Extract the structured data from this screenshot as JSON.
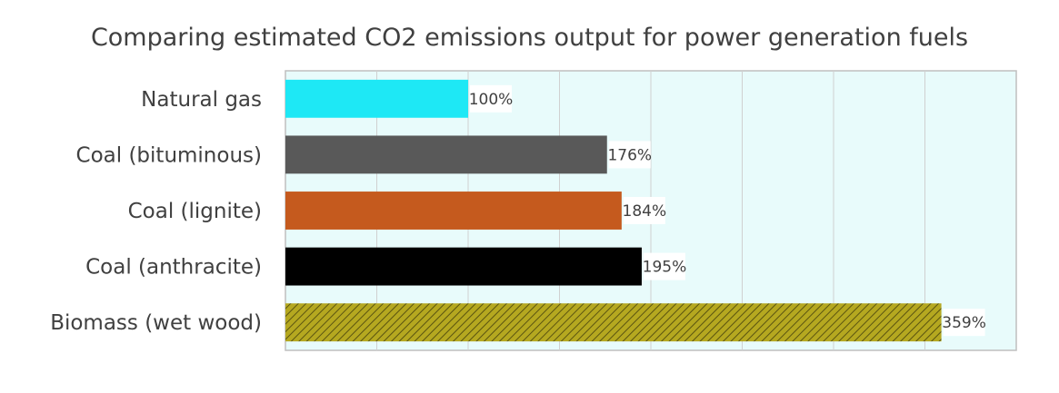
{
  "chart_data": {
    "type": "bar",
    "orientation": "horizontal",
    "title": "Comparing estimated CO2 emissions output for power generation fuels",
    "xlabel": "",
    "ylabel": "",
    "categories": [
      "Natural gas",
      "Coal (bituminous)",
      "Coal (lignite)",
      "Coal (anthracite)",
      "Biomass (wet wood)"
    ],
    "values": [
      100,
      176,
      184,
      195,
      359
    ],
    "value_labels": [
      "100%",
      "176%",
      "184%",
      "195%",
      "359%"
    ],
    "xlim": [
      0,
      400
    ],
    "grid": true,
    "legend": "none",
    "plot_background": "#e8fbfb",
    "bar_colors": [
      "#1ee8f5",
      "#595959",
      "#c55a1e",
      "#000000",
      "#b5a820"
    ],
    "bar_patterns": [
      "solid",
      "solid",
      "solid",
      "solid",
      "diagonal-hatch"
    ]
  }
}
